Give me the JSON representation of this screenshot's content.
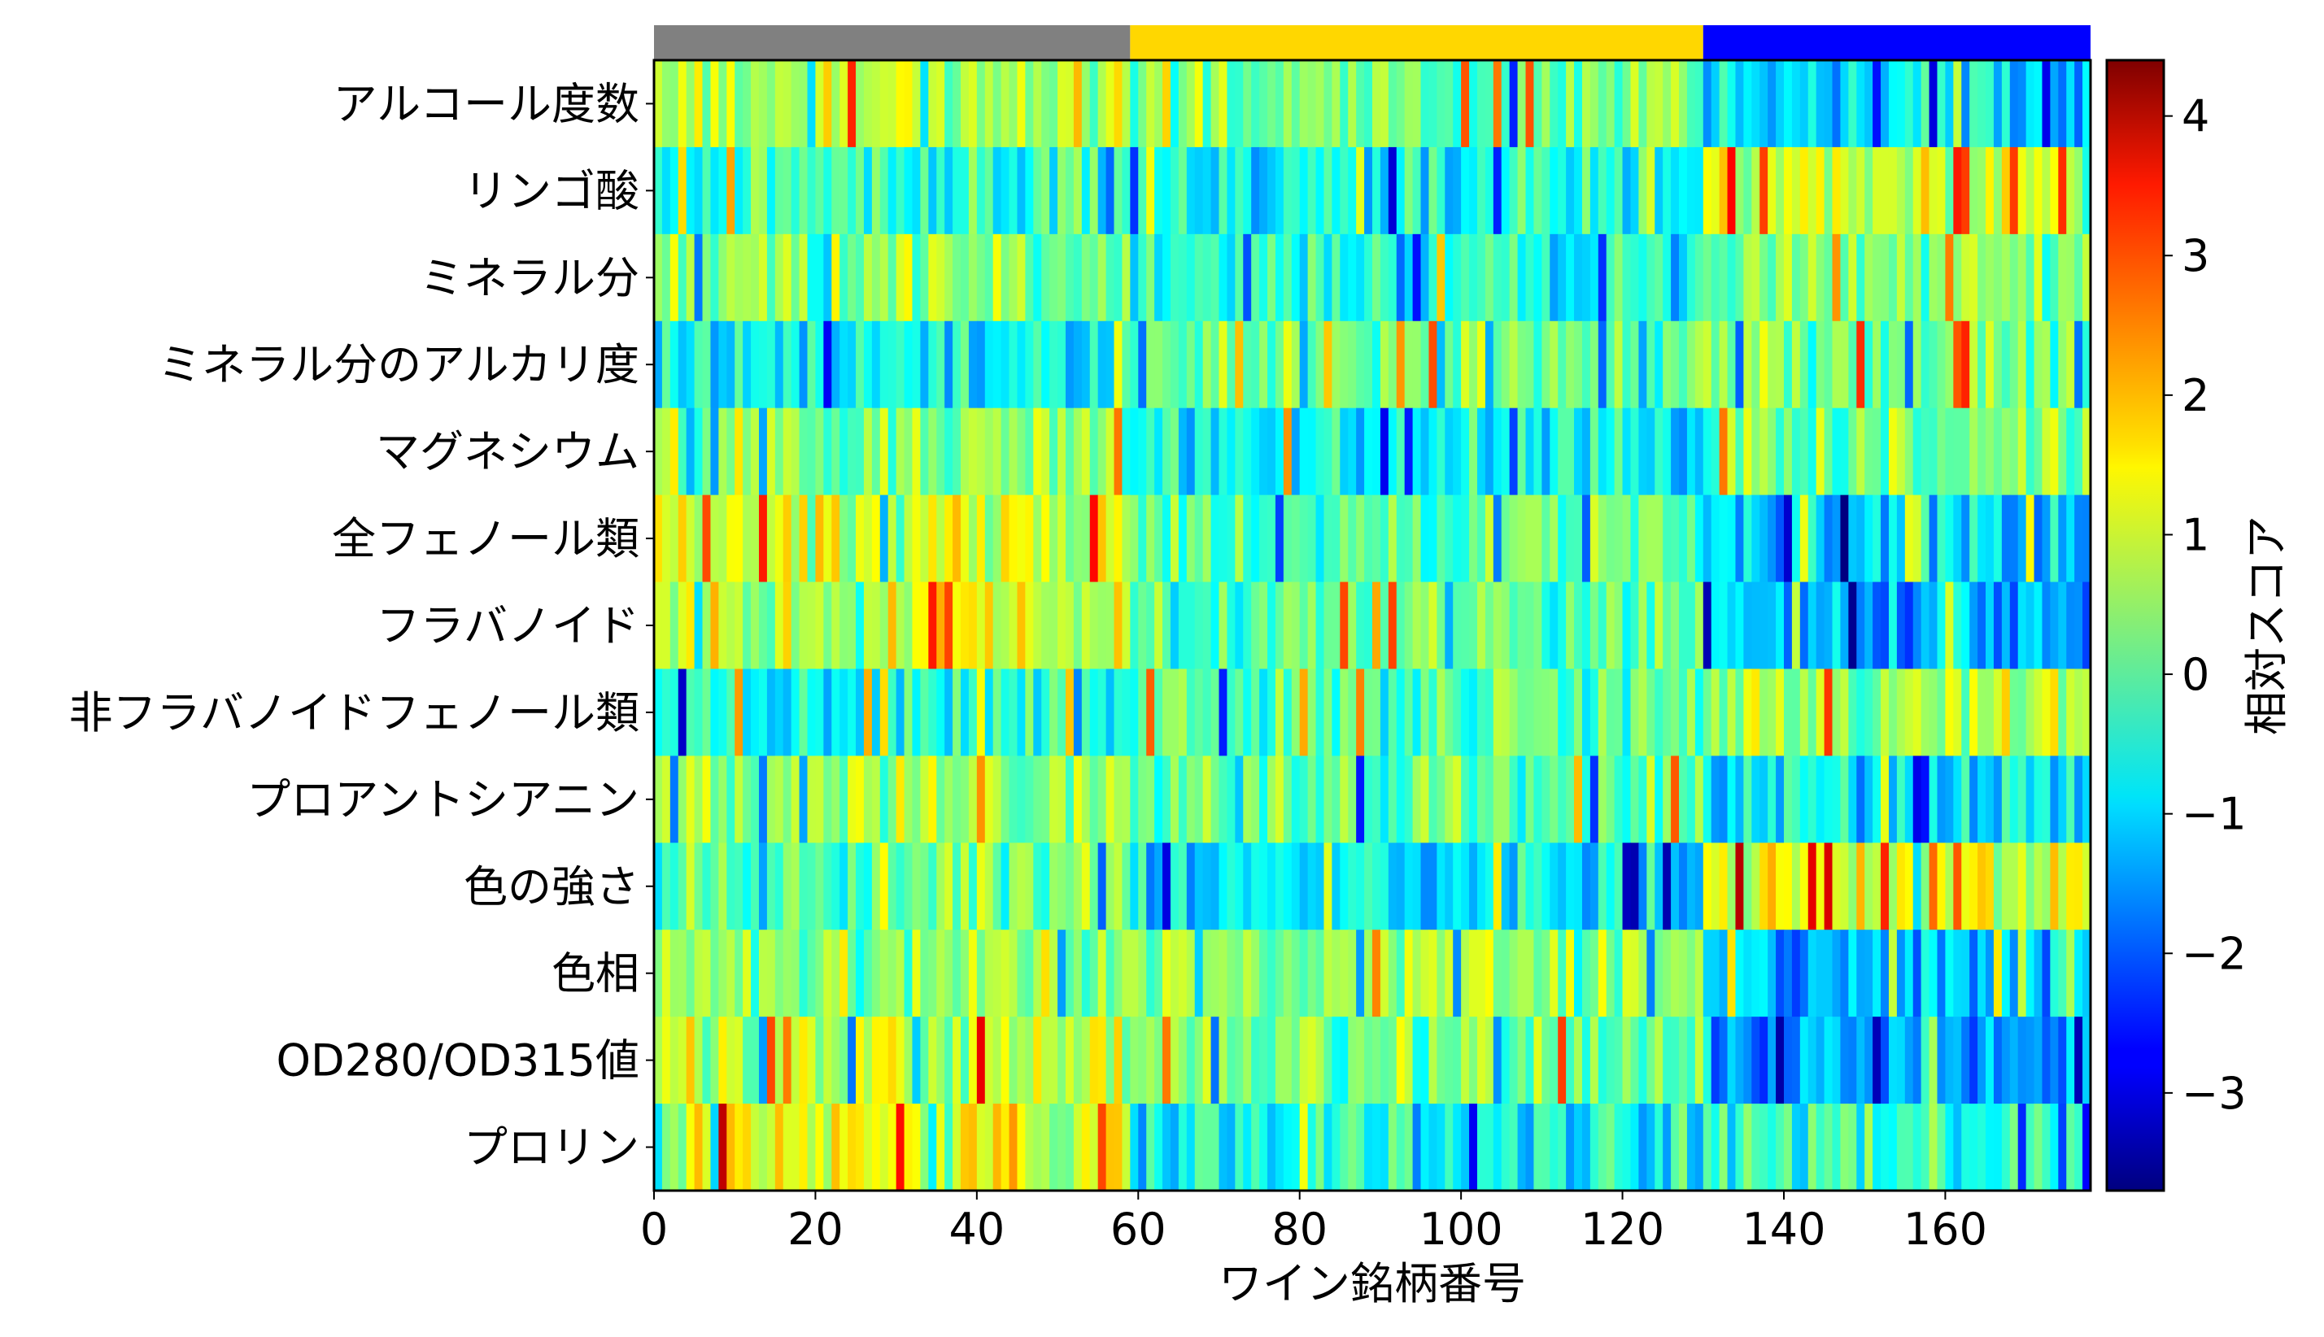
{
  "chart_data": {
    "type": "heatmap",
    "title": "",
    "xlabel": "ワイン銘柄番号",
    "ylabel": "",
    "colorbar_label": "相対スコア",
    "colormap": "jet",
    "color_range": [
      -3.7,
      4.4
    ],
    "n_samples": 178,
    "xlim": [
      0,
      178
    ],
    "x_ticks": [
      "0",
      "20",
      "40",
      "60",
      "80",
      "100",
      "120",
      "140",
      "160"
    ],
    "colorbar_ticks": [
      "4",
      "3",
      "2",
      "1",
      "0",
      "−1",
      "−2",
      "−3"
    ],
    "rows": [
      "アルコール度数",
      "リンゴ酸",
      "ミネラル分",
      "ミネラル分のアルカリ度",
      "マグネシウム",
      "全フェノール類",
      "フラバノイド",
      "非フラバノイドフェノール類",
      "プロアントシアニン",
      "色の強さ",
      "色相",
      "OD280/OD315値",
      "プロリン"
    ],
    "class_bar": [
      {
        "start": 0,
        "end": 59,
        "color": "#808080"
      },
      {
        "start": 59,
        "end": 130,
        "color": "#ffd700"
      },
      {
        "start": 130,
        "end": 178,
        "color": "#0000ff"
      }
    ],
    "class_means": [
      [
        0.9,
        0.2,
        -0.9
      ],
      [
        -0.3,
        -0.5,
        0.9
      ],
      [
        0.3,
        -0.5,
        0.3
      ],
      [
        -0.7,
        0.3,
        0.3
      ],
      [
        0.5,
        -0.6,
        0.2
      ],
      [
        0.9,
        0.1,
        -1.0
      ],
      [
        1.0,
        0.1,
        -1.3
      ],
      [
        -0.6,
        0.0,
        0.7
      ],
      [
        0.5,
        0.0,
        -0.8
      ],
      [
        0.2,
        -0.9,
        1.0
      ],
      [
        0.5,
        0.4,
        -1.2
      ],
      [
        0.8,
        0.3,
        -1.3
      ],
      [
        1.2,
        -0.7,
        -0.4
      ]
    ]
  }
}
